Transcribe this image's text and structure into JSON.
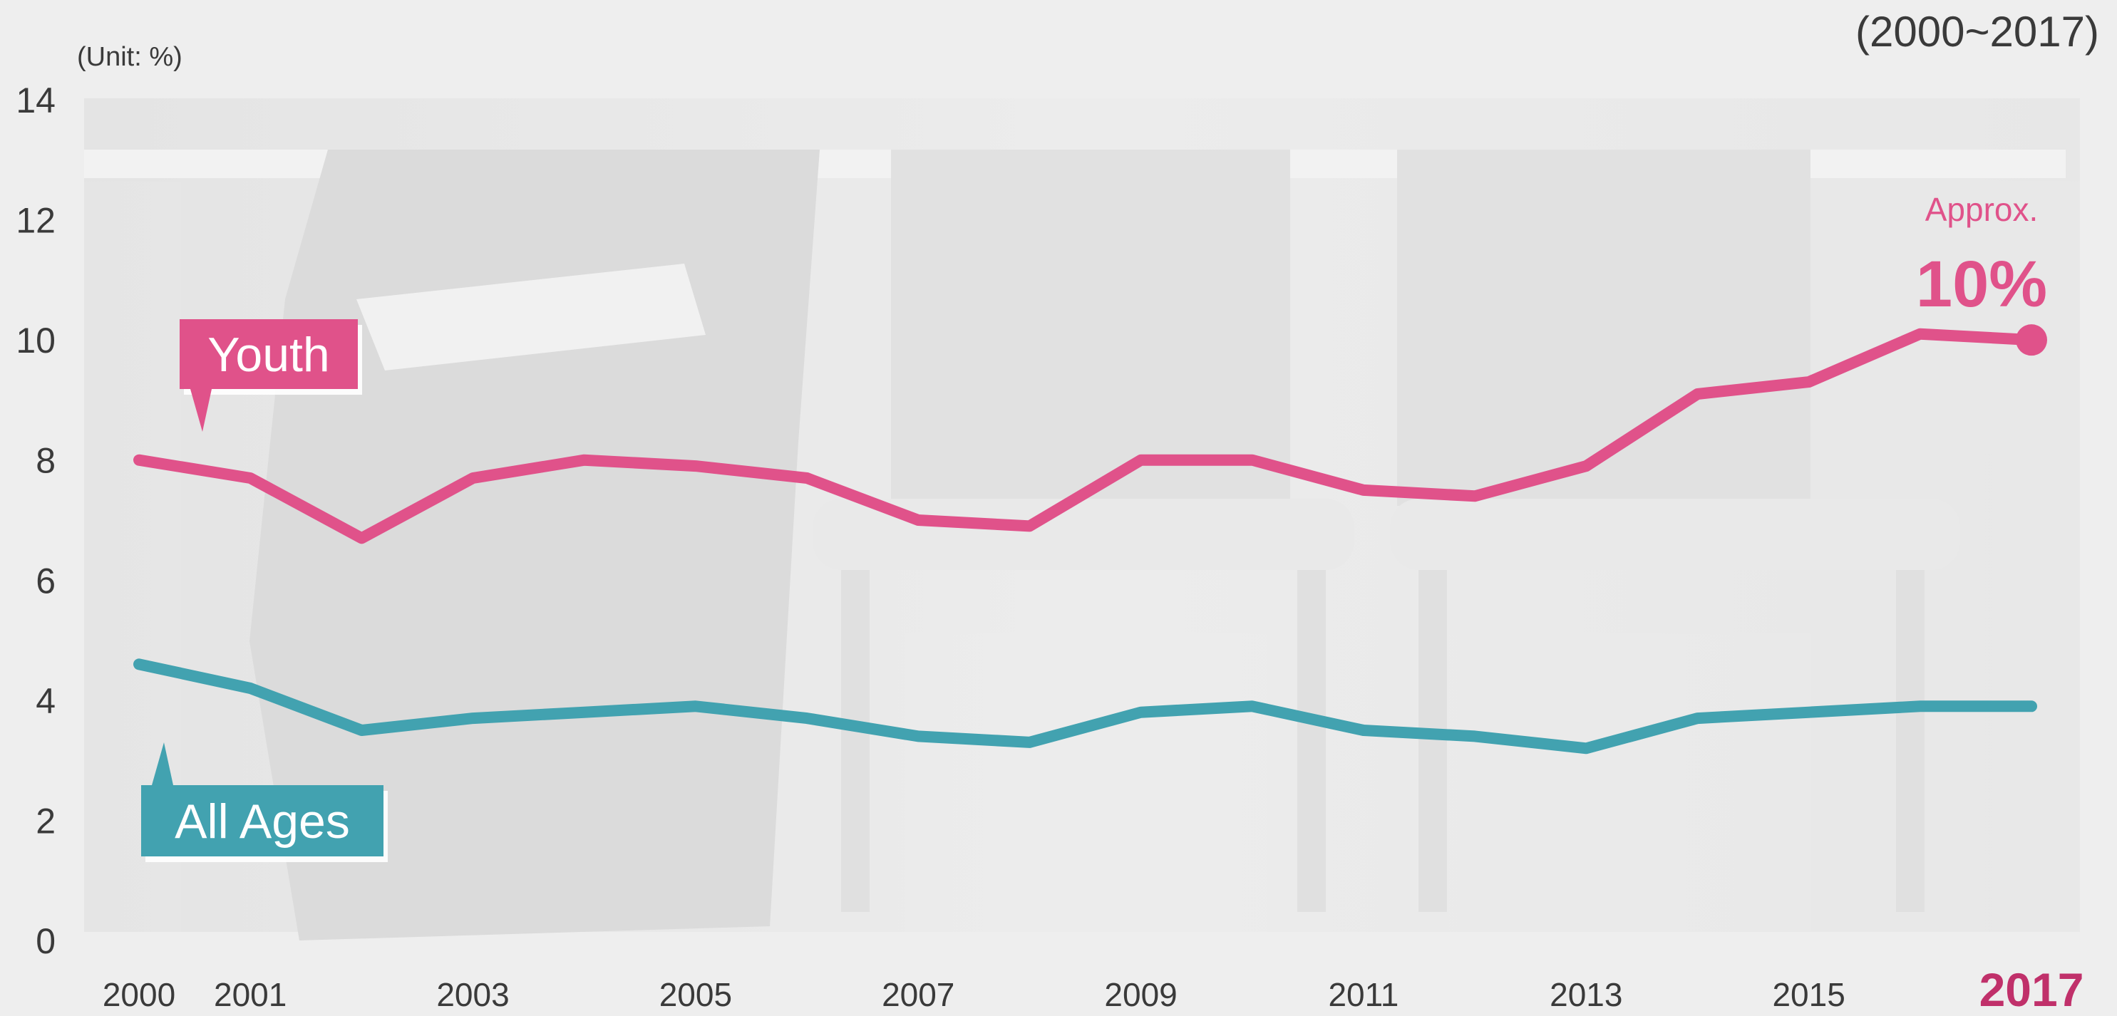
{
  "chart_data": {
    "type": "line",
    "unit_label": "(Unit: %)",
    "period_label": "(2000~2017)",
    "x": [
      2000,
      2001,
      2002,
      2003,
      2004,
      2005,
      2006,
      2007,
      2008,
      2009,
      2010,
      2011,
      2012,
      2013,
      2014,
      2015,
      2016,
      2017
    ],
    "x_tick_labels": [
      "2000",
      "2001",
      "2003",
      "2005",
      "2007",
      "2009",
      "2011",
      "2013",
      "2015",
      "2017"
    ],
    "y_ticks": [
      "0",
      "2",
      "4",
      "6",
      "8",
      "10",
      "12",
      "14"
    ],
    "ylim": [
      0,
      14
    ],
    "grid": false,
    "series": [
      {
        "name": "Youth",
        "color": "#e0528a",
        "values": [
          8.0,
          7.7,
          6.7,
          7.7,
          8.0,
          7.9,
          7.7,
          7.0,
          6.9,
          8.0,
          8.0,
          7.5,
          7.4,
          7.9,
          9.1,
          9.3,
          10.1,
          10.0
        ]
      },
      {
        "name": "All Ages",
        "color": "#42a2b0",
        "values": [
          4.6,
          4.2,
          3.5,
          3.7,
          3.8,
          3.9,
          3.7,
          3.4,
          3.3,
          3.8,
          3.9,
          3.5,
          3.4,
          3.2,
          3.7,
          3.8,
          3.9,
          3.9
        ]
      }
    ],
    "annotation": {
      "prefix": "Approx.",
      "value": "10%"
    }
  }
}
